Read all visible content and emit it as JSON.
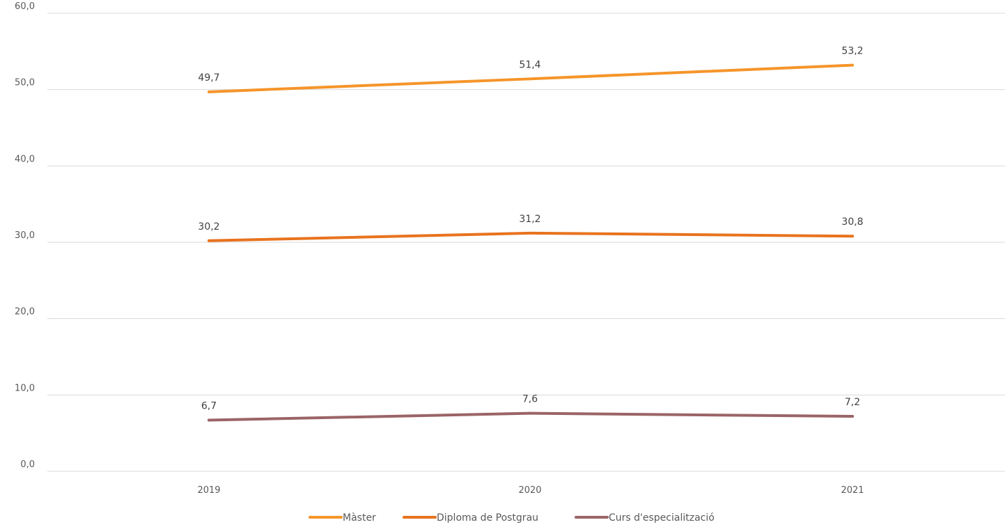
{
  "chart_data": {
    "type": "line",
    "categories": [
      "2019",
      "2020",
      "2021"
    ],
    "series": [
      {
        "name": "Màster",
        "color": "#F5952A",
        "values": [
          49.7,
          51.4,
          53.2
        ],
        "labels": [
          "49,7",
          "51,4",
          "53,2"
        ]
      },
      {
        "name": "Diploma de Postgrau",
        "color": "#E8731E",
        "values": [
          30.2,
          31.2,
          30.8
        ],
        "labels": [
          "30,2",
          "31,2",
          "30,8"
        ]
      },
      {
        "name": "Curs d'especialització",
        "color": "#9B6467",
        "values": [
          6.7,
          7.6,
          7.2
        ],
        "labels": [
          "6,7",
          "7,6",
          "7,2"
        ]
      }
    ],
    "ylim": [
      0,
      60
    ],
    "yticks": [
      0,
      10,
      20,
      30,
      40,
      50,
      60
    ],
    "ytick_labels": [
      "0,0",
      "10,0",
      "20,0",
      "30,0",
      "40,0",
      "50,0",
      "60,0"
    ],
    "grid": true,
    "legend_position": "bottom",
    "title": "",
    "xlabel": "",
    "ylabel": ""
  }
}
